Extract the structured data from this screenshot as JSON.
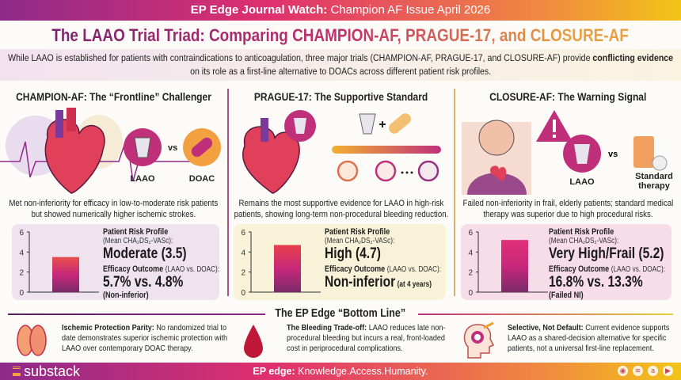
{
  "header": {
    "brand": "EP Edge Journal Watch:",
    "issue": "Champion AF Issue April 2026"
  },
  "title": "The LAAO Trial Triad: Comparing CHAMPION-AF, PRAGUE-17, and CLOSURE-AF",
  "intro": {
    "part1": "While LAAO is established for patients with contraindications to anticoagulation, three major trials (CHAMPION-AF, PRAGUE-17, and CLOSURE-AF) provide ",
    "bold": "conflicting evidence",
    "part2": " on its role as a first-line alternative to DOACs across different patient risk profiles."
  },
  "trials": [
    {
      "heading": "CHAMPION-AF: The “Frontline” Challenger",
      "labels": [
        "LAAO",
        "DOAC"
      ],
      "vs": "vs",
      "description": "Met non-inferiority for efficacy in low-to-moderate risk patients but showed numerically higher ischemic strokes.",
      "risk_label": "Patient Risk Profile",
      "risk_sub": "(Mean CHA₂DS₂-VASc):",
      "risk_value": "Moderate (3.5)",
      "efficacy_label": "Efficacy Outcome",
      "efficacy_sub": "(LAAO vs. DOAC):",
      "efficacy_value": "5.7% vs. 4.8%",
      "efficacy_note": "(Non-inferior)",
      "panel_color": "#efe3ef"
    },
    {
      "heading": "PRAGUE-17: The Supportive Standard",
      "description": "Remains the most supportive evidence for LAAO in high-risk patients, showing long-term non-procedural bleeding reduction.",
      "risk_label": "Patient Risk Profile",
      "risk_sub": "(Mean CHA₂DS₂-VASc):",
      "risk_value": "High (4.7)",
      "efficacy_label": "Efficacy Outcome",
      "efficacy_sub": "(LAAO vs. DOAC):",
      "efficacy_value": "Non-inferior",
      "efficacy_note": "(at 4 years)",
      "panel_color": "#f8f2d8"
    },
    {
      "heading": "CLOSURE-AF: The Warning Signal",
      "labels": [
        "LAAO",
        "Standard therapy"
      ],
      "vs": "vs",
      "description": "Failed non-inferiority in frail, elderly patients; standard medical therapy was superior due to high procedural risks.",
      "risk_label": "Patient Risk Profile",
      "risk_sub": "(Mean CHA₂DS₂-VASc):",
      "risk_value": "Very High/Frail (5.2)",
      "efficacy_label": "Efficacy Outcome",
      "efficacy_sub": "(LAAO vs. DOAC):",
      "efficacy_value": "16.8% vs. 13.3%",
      "efficacy_note": "(Failed NI)",
      "panel_color": "#f6dde7"
    }
  ],
  "chart_data": [
    {
      "type": "bar",
      "values": [
        3.5
      ],
      "ylim": [
        0,
        6
      ],
      "yticks": [
        "0",
        "2",
        "4",
        "6"
      ],
      "grid": false
    },
    {
      "type": "bar",
      "values": [
        4.7
      ],
      "ylim": [
        0,
        6
      ],
      "yticks": [
        "0",
        "2",
        "4",
        "6"
      ],
      "grid": false
    },
    {
      "type": "bar",
      "values": [
        5.2
      ],
      "ylim": [
        0,
        6
      ],
      "yticks": [
        "0",
        "2",
        "4",
        "6"
      ],
      "grid": false
    }
  ],
  "bottom_line": {
    "heading": "The EP Edge “Bottom Line”",
    "items": [
      {
        "icon": "brain-icon",
        "title": "Ischemic Protection Parity:",
        "text": " No randomized trial to date demonstrates superior ischemic protection with LAAO over contemporary DOAC therapy."
      },
      {
        "icon": "blood-drop-icon",
        "title": "The Bleeding Trade-off:",
        "text": " LAAO reduces late non-procedural bleeding but incurs a real, front-loaded cost in periprocedural complications."
      },
      {
        "icon": "head-gear-icon",
        "title": "Selective, Not Default:",
        "text": " Current evidence supports LAAO as a shared-decision alternative for specific patients, not a universal first-line replacement."
      }
    ]
  },
  "footer": {
    "logo": "substack",
    "tag_bold": "EP edge:",
    "tag": " Knowledge.Access.Humanity.",
    "icons": [
      "podcast-icon",
      "spotify-icon",
      "amazon-icon",
      "youtube-icon"
    ]
  },
  "colors": {
    "purple": "#8e2a8a",
    "magenta": "#e0306e",
    "orange": "#f08a40",
    "yellow": "#f2c418"
  }
}
